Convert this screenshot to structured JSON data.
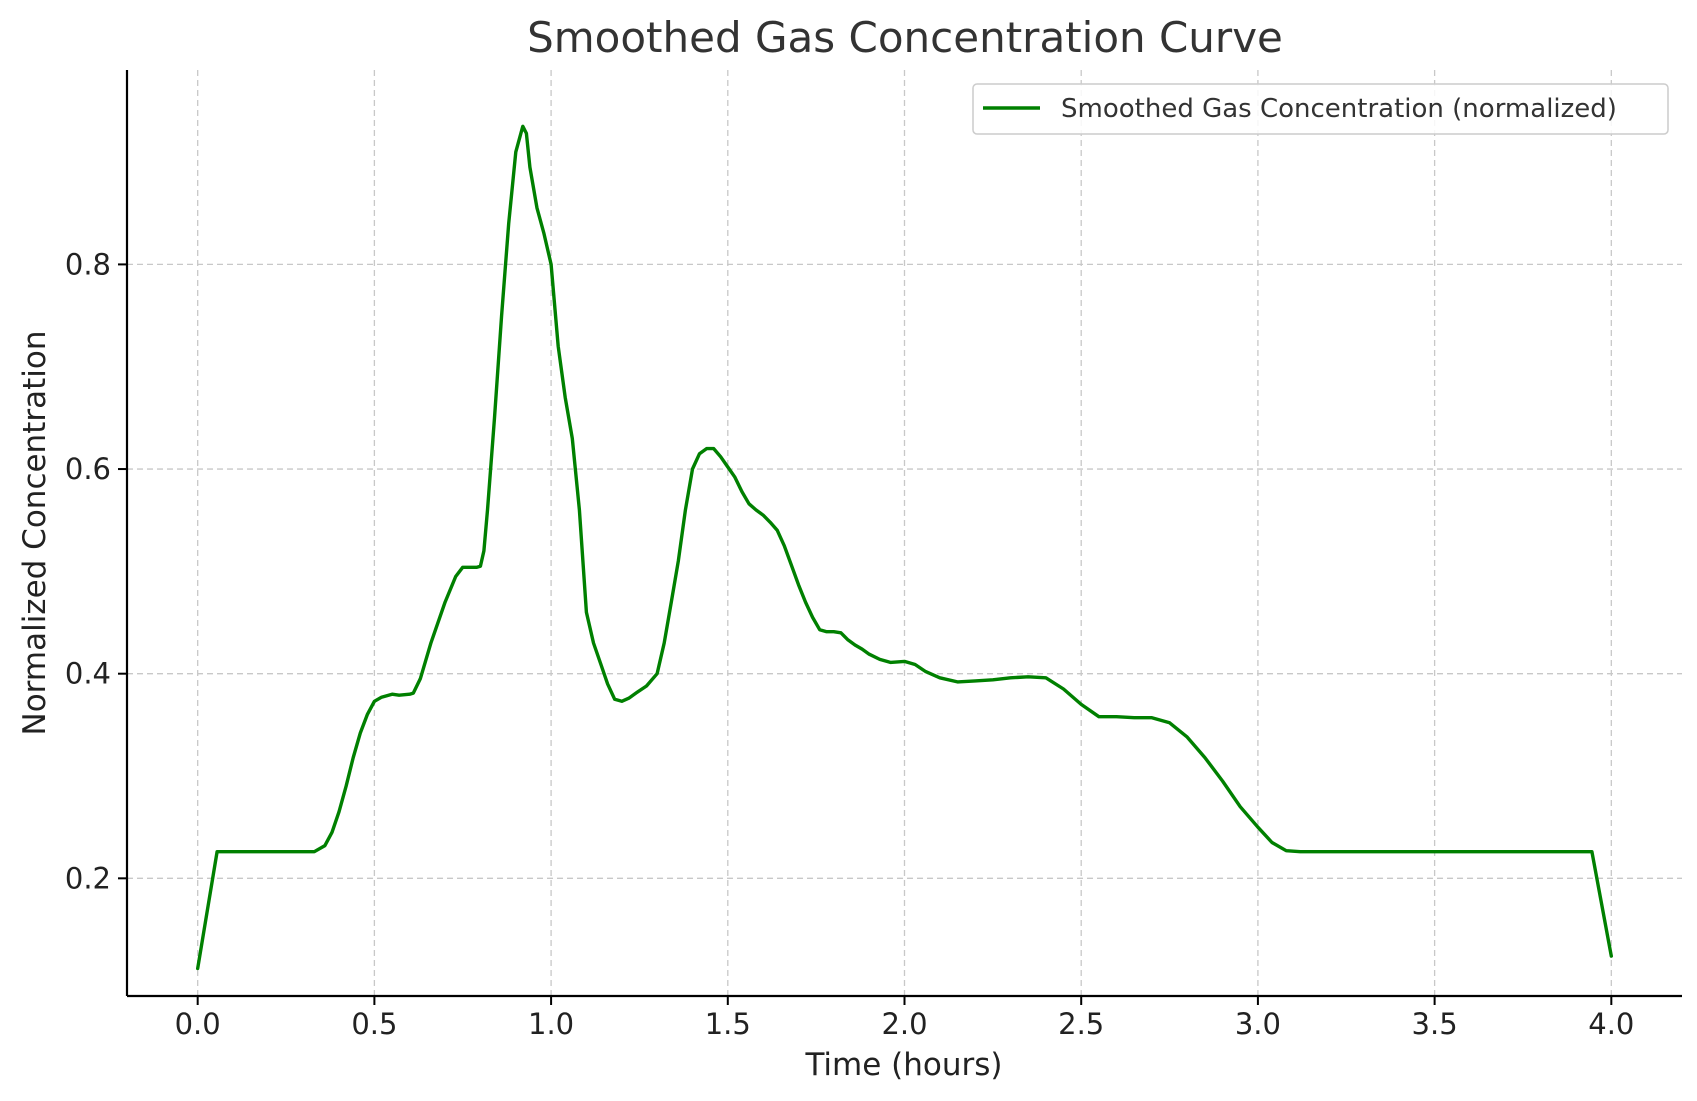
{
  "chart_data": {
    "type": "line",
    "title": "Smoothed Gas Concentration Curve",
    "xlabel": "Time (hours)",
    "ylabel": "Normalized Concentration",
    "xlim": [
      -0.2,
      4.2
    ],
    "ylim": [
      0.085,
      0.99
    ],
    "xticks": [
      0.0,
      0.5,
      1.0,
      1.5,
      2.0,
      2.5,
      3.0,
      3.5,
      4.0
    ],
    "xtick_labels": [
      "0.0",
      "0.5",
      "1.0",
      "1.5",
      "2.0",
      "2.5",
      "3.0",
      "3.5",
      "4.0"
    ],
    "yticks": [
      0.2,
      0.4,
      0.6,
      0.8
    ],
    "ytick_labels": [
      "0.2",
      "0.4",
      "0.6",
      "0.8"
    ],
    "grid": true,
    "legend_position": "top-right",
    "colors": {
      "series": "#008000",
      "grid": "#c8c8c8",
      "axis": "#000000"
    },
    "series": [
      {
        "name": "Smoothed Gas Concentration (normalized)",
        "x": [
          0.0,
          0.055,
          0.1,
          0.2,
          0.33,
          0.36,
          0.38,
          0.4,
          0.42,
          0.44,
          0.46,
          0.48,
          0.5,
          0.52,
          0.55,
          0.57,
          0.6,
          0.61,
          0.63,
          0.66,
          0.7,
          0.73,
          0.75,
          0.79,
          0.8,
          0.81,
          0.82,
          0.84,
          0.86,
          0.88,
          0.9,
          0.92,
          0.93,
          0.94,
          0.96,
          0.98,
          1.0,
          1.02,
          1.04,
          1.06,
          1.08,
          1.1,
          1.12,
          1.14,
          1.16,
          1.18,
          1.2,
          1.22,
          1.24,
          1.27,
          1.3,
          1.32,
          1.34,
          1.36,
          1.38,
          1.4,
          1.42,
          1.44,
          1.46,
          1.48,
          1.5,
          1.52,
          1.54,
          1.56,
          1.58,
          1.6,
          1.62,
          1.64,
          1.66,
          1.68,
          1.7,
          1.72,
          1.74,
          1.76,
          1.78,
          1.8,
          1.82,
          1.84,
          1.86,
          1.88,
          1.9,
          1.93,
          1.96,
          2.0,
          2.03,
          2.06,
          2.1,
          2.15,
          2.2,
          2.25,
          2.3,
          2.35,
          2.4,
          2.45,
          2.5,
          2.55,
          2.6,
          2.65,
          2.7,
          2.75,
          2.8,
          2.85,
          2.9,
          2.95,
          3.0,
          3.04,
          3.08,
          3.12,
          3.2,
          3.5,
          3.9,
          3.945,
          4.0
        ],
        "y": [
          0.112,
          0.226,
          0.226,
          0.226,
          0.226,
          0.232,
          0.245,
          0.265,
          0.29,
          0.318,
          0.342,
          0.36,
          0.373,
          0.377,
          0.38,
          0.379,
          0.38,
          0.381,
          0.395,
          0.43,
          0.47,
          0.495,
          0.504,
          0.504,
          0.505,
          0.52,
          0.56,
          0.65,
          0.75,
          0.84,
          0.91,
          0.935,
          0.928,
          0.895,
          0.855,
          0.83,
          0.8,
          0.72,
          0.67,
          0.63,
          0.56,
          0.46,
          0.43,
          0.41,
          0.39,
          0.375,
          0.373,
          0.376,
          0.381,
          0.388,
          0.4,
          0.43,
          0.47,
          0.51,
          0.56,
          0.6,
          0.615,
          0.62,
          0.62,
          0.612,
          0.602,
          0.592,
          0.578,
          0.566,
          0.56,
          0.555,
          0.548,
          0.54,
          0.525,
          0.506,
          0.487,
          0.47,
          0.455,
          0.443,
          0.441,
          0.441,
          0.44,
          0.433,
          0.428,
          0.424,
          0.419,
          0.414,
          0.411,
          0.412,
          0.409,
          0.402,
          0.396,
          0.392,
          0.393,
          0.394,
          0.396,
          0.397,
          0.396,
          0.385,
          0.37,
          0.358,
          0.358,
          0.357,
          0.357,
          0.352,
          0.338,
          0.318,
          0.295,
          0.27,
          0.25,
          0.235,
          0.227,
          0.226,
          0.226,
          0.226,
          0.226,
          0.226,
          0.124
        ]
      }
    ]
  }
}
